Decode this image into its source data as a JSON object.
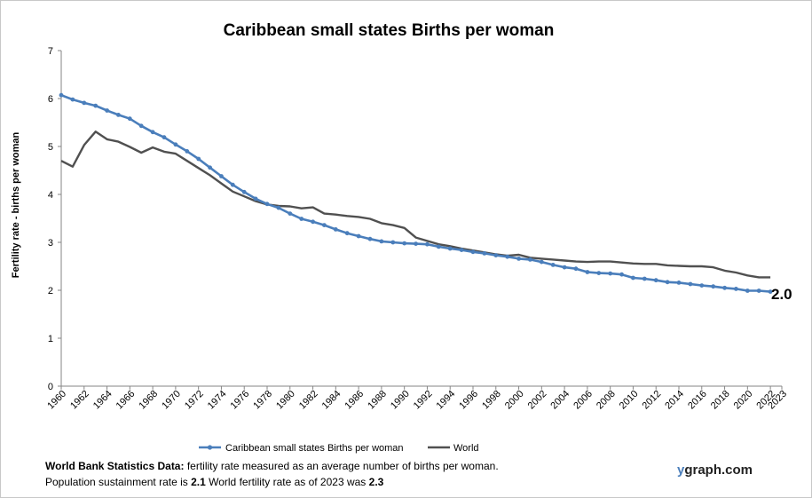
{
  "chart_data": {
    "type": "line",
    "title": "Caribbean small states Births per woman",
    "xlabel": "",
    "ylabel": "Fertility rate  - births per woman",
    "ylim": [
      0,
      7
    ],
    "yticks": [
      "0",
      "1",
      "2",
      "3",
      "4",
      "5",
      "6",
      "7"
    ],
    "xlim": [
      1960,
      2023
    ],
    "xticks": [
      "1960",
      "1962",
      "1964",
      "1966",
      "1968",
      "1970",
      "1972",
      "1974",
      "1976",
      "1978",
      "1980",
      "1982",
      "1984",
      "1986",
      "1988",
      "1990",
      "1992",
      "1994",
      "1996",
      "1998",
      "2000",
      "2002",
      "2004",
      "2006",
      "2008",
      "2010",
      "2012",
      "2014",
      "2016",
      "2018",
      "2020",
      "2022",
      "2023"
    ],
    "grid": false,
    "legend": "bottom",
    "end_label": "2.0",
    "series": [
      {
        "name": "Caribbean small states Births per woman",
        "color": "#4a7ebb",
        "markers": true,
        "x": [
          1960,
          1961,
          1962,
          1963,
          1964,
          1965,
          1966,
          1967,
          1968,
          1969,
          1970,
          1971,
          1972,
          1973,
          1974,
          1975,
          1976,
          1977,
          1978,
          1979,
          1980,
          1981,
          1982,
          1983,
          1984,
          1985,
          1986,
          1987,
          1988,
          1989,
          1990,
          1991,
          1992,
          1993,
          1994,
          1995,
          1996,
          1997,
          1998,
          1999,
          2000,
          2001,
          2002,
          2003,
          2004,
          2005,
          2006,
          2007,
          2008,
          2009,
          2010,
          2011,
          2012,
          2013,
          2014,
          2015,
          2016,
          2017,
          2018,
          2019,
          2020,
          2021,
          2022
        ],
        "values": [
          6.07,
          5.98,
          5.91,
          5.85,
          5.75,
          5.66,
          5.58,
          5.43,
          5.3,
          5.19,
          5.04,
          4.9,
          4.74,
          4.56,
          4.38,
          4.2,
          4.05,
          3.91,
          3.8,
          3.72,
          3.6,
          3.49,
          3.43,
          3.36,
          3.27,
          3.19,
          3.13,
          3.07,
          3.02,
          3.0,
          2.98,
          2.97,
          2.96,
          2.91,
          2.87,
          2.84,
          2.8,
          2.77,
          2.73,
          2.7,
          2.66,
          2.64,
          2.59,
          2.53,
          2.48,
          2.45,
          2.38,
          2.36,
          2.35,
          2.33,
          2.26,
          2.24,
          2.21,
          2.17,
          2.16,
          2.13,
          2.1,
          2.08,
          2.05,
          2.03,
          1.99,
          1.99,
          1.97
        ]
      },
      {
        "name": "World",
        "color": "#505050",
        "markers": false,
        "x": [
          1960,
          1961,
          1962,
          1963,
          1964,
          1965,
          1966,
          1967,
          1968,
          1969,
          1970,
          1971,
          1972,
          1973,
          1974,
          1975,
          1976,
          1977,
          1978,
          1979,
          1980,
          1981,
          1982,
          1983,
          1984,
          1985,
          1986,
          1987,
          1988,
          1989,
          1990,
          1991,
          1992,
          1993,
          1994,
          1995,
          1996,
          1997,
          1998,
          1999,
          2000,
          2001,
          2002,
          2003,
          2004,
          2005,
          2006,
          2007,
          2008,
          2009,
          2010,
          2011,
          2012,
          2013,
          2014,
          2015,
          2016,
          2017,
          2018,
          2019,
          2020,
          2021,
          2022
        ],
        "values": [
          4.7,
          4.58,
          5.03,
          5.31,
          5.15,
          5.1,
          4.99,
          4.87,
          4.98,
          4.89,
          4.85,
          4.7,
          4.55,
          4.4,
          4.23,
          4.06,
          3.96,
          3.86,
          3.79,
          3.76,
          3.75,
          3.71,
          3.73,
          3.6,
          3.58,
          3.55,
          3.53,
          3.49,
          3.4,
          3.36,
          3.3,
          3.1,
          3.03,
          2.96,
          2.92,
          2.87,
          2.83,
          2.79,
          2.75,
          2.72,
          2.74,
          2.68,
          2.66,
          2.64,
          2.62,
          2.6,
          2.59,
          2.6,
          2.6,
          2.58,
          2.56,
          2.55,
          2.55,
          2.52,
          2.51,
          2.5,
          2.5,
          2.48,
          2.41,
          2.37,
          2.31,
          2.27,
          2.27
        ]
      }
    ]
  },
  "footer": {
    "line1_bold": "World Bank Statistics Data:",
    "line1_rest": " fertility rate measured as an average number of births per woman.",
    "line2_a": "Population sustainment rate is ",
    "line2_b": "2.1",
    "line2_c": "   World fertility rate as of 2023 was ",
    "line2_d": "2.3"
  },
  "brand": {
    "y": "y",
    "rest": "graph.com"
  }
}
